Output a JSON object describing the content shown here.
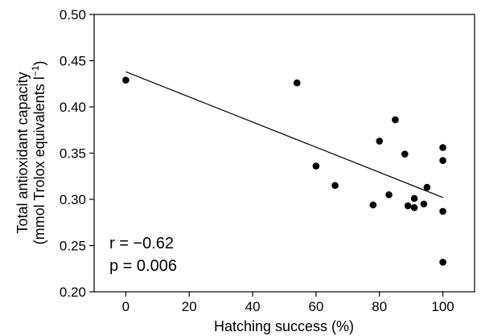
{
  "chart_data": {
    "type": "scatter",
    "xlabel": "Hatching success (%)",
    "ylabel_line1": "Total antioxidant capacity",
    "ylabel_line2_prefix": "(mmol Trolox equivalents l",
    "ylabel_line2_sup": "−1",
    "ylabel_line2_suffix": ")",
    "xlim": [
      -10,
      110
    ],
    "ylim": [
      0.2,
      0.5
    ],
    "xticks": [
      0,
      20,
      40,
      60,
      80,
      100
    ],
    "xtick_labels": [
      "0",
      "20",
      "40",
      "60",
      "80",
      "100"
    ],
    "yticks": [
      0.2,
      0.25,
      0.3,
      0.35,
      0.4,
      0.45,
      0.5
    ],
    "ytick_labels": [
      "0.20",
      "0.25",
      "0.30",
      "0.35",
      "0.40",
      "0.45",
      "0.50"
    ],
    "points": [
      {
        "x": 0,
        "y": 0.429
      },
      {
        "x": 54,
        "y": 0.426
      },
      {
        "x": 60,
        "y": 0.336
      },
      {
        "x": 66,
        "y": 0.315
      },
      {
        "x": 78,
        "y": 0.294
      },
      {
        "x": 80,
        "y": 0.363
      },
      {
        "x": 83,
        "y": 0.305
      },
      {
        "x": 85,
        "y": 0.386
      },
      {
        "x": 88,
        "y": 0.349
      },
      {
        "x": 89,
        "y": 0.293
      },
      {
        "x": 91,
        "y": 0.301
      },
      {
        "x": 91,
        "y": 0.291
      },
      {
        "x": 94,
        "y": 0.295
      },
      {
        "x": 95,
        "y": 0.313
      },
      {
        "x": 100,
        "y": 0.356
      },
      {
        "x": 100,
        "y": 0.342
      },
      {
        "x": 100,
        "y": 0.287
      },
      {
        "x": 100,
        "y": 0.232
      }
    ],
    "regression_line": {
      "x": [
        0,
        100
      ],
      "y": [
        0.438,
        0.302
      ]
    },
    "annotations": {
      "r": "r = −0.62",
      "p": "p = 0.006"
    },
    "grid": false,
    "marker_color": "#000000",
    "line_color": "#000000"
  }
}
